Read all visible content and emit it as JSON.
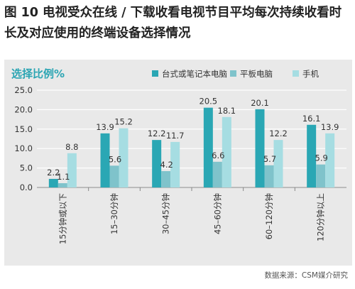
{
  "title": "图 10 电视受众在线 / 下载收看电视节目平均每次持续收看时长及对应使用的终端设备选择情况",
  "source": "数据来源：CSM媒介研究",
  "colors": {
    "panel_bg": "#e9e9e9",
    "ylabel": "#2ba5b3",
    "series": [
      "#2aa7b4",
      "#7fc3cb",
      "#a6dde2"
    ]
  },
  "chart_data": {
    "type": "bar",
    "ylabel": "选择比例%",
    "ylim": [
      0,
      25
    ],
    "yticks": [
      "0.0",
      "5.0",
      "10.0",
      "15.0",
      "20.0",
      "25.0"
    ],
    "grid": true,
    "legend_position": "top-right",
    "categories": [
      "15分钟或以下",
      "15–30分钟",
      "30–45分钟",
      "45–60分钟",
      "60–120分钟",
      "120分钟以上"
    ],
    "series": [
      {
        "name": "台式或笔记本电脑",
        "values": [
          2.2,
          13.9,
          12.2,
          20.5,
          20.1,
          16.1
        ]
      },
      {
        "name": "平板电脑",
        "values": [
          1.1,
          5.6,
          4.2,
          6.6,
          5.7,
          5.9
        ]
      },
      {
        "name": "手机",
        "values": [
          8.8,
          15.2,
          11.7,
          18.1,
          12.2,
          13.9
        ]
      }
    ]
  }
}
